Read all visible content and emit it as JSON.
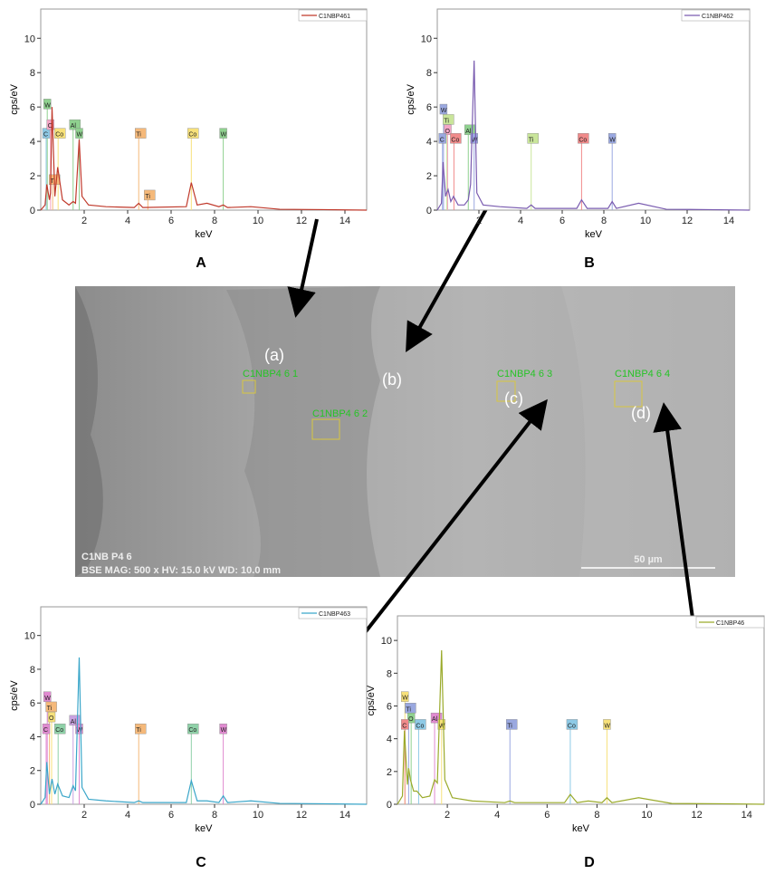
{
  "chart_data": [
    {
      "type": "line",
      "panel_label": "A",
      "x_label": "keV",
      "y_label": "cps/eV",
      "x": [
        0,
        0.2,
        0.28,
        0.4,
        0.45,
        0.52,
        0.65,
        0.78,
        1.0,
        1.3,
        1.49,
        1.6,
        1.77,
        1.9,
        2.2,
        3,
        4.3,
        4.51,
        4.7,
        6.7,
        6.93,
        7.2,
        7.65,
        8.2,
        8.4,
        8.6,
        9.67,
        11,
        13,
        15
      ],
      "series": [
        {
          "name": "C1NBP461",
          "color": "#c0392b",
          "values": [
            0,
            0.3,
            1.5,
            0.6,
            1.0,
            6.0,
            0.8,
            2.5,
            0.6,
            0.3,
            0.5,
            0.4,
            4.1,
            0.8,
            0.3,
            0.2,
            0.15,
            0.4,
            0.15,
            0.2,
            1.6,
            0.3,
            0.4,
            0.2,
            0.3,
            0.15,
            0.2,
            0.05,
            0.03,
            0
          ]
        }
      ],
      "xlim": [
        0,
        15
      ],
      "ylim": [
        0,
        11.7
      ],
      "xticks": [
        2,
        4,
        6,
        8,
        10,
        12,
        14
      ],
      "yticks": [
        0,
        2,
        4,
        6,
        8,
        10
      ],
      "annotations": [
        {
          "text": "W",
          "x": 0.3,
          "y": 6.2,
          "color": "#8fd18f"
        },
        {
          "text": "C",
          "x": 0.25,
          "y": 4.5,
          "color": "#8ecae6"
        },
        {
          "text": "O",
          "x": 0.45,
          "y": 5.0,
          "color": "#f4a6c6"
        },
        {
          "text": "Co",
          "x": 0.8,
          "y": 4.5,
          "color": "#f7e17a"
        },
        {
          "text": "Ti",
          "x": 0.55,
          "y": 1.8,
          "color": "#f5b97a"
        },
        {
          "text": "Al",
          "x": 1.49,
          "y": 5.0,
          "color": "#8fd18f"
        },
        {
          "text": "W",
          "x": 1.77,
          "y": 4.5,
          "color": "#8fd18f"
        },
        {
          "text": "Ti",
          "x": 4.51,
          "y": 4.5,
          "color": "#f5b97a"
        },
        {
          "text": "Ti",
          "x": 4.93,
          "y": 0.9,
          "color": "#f5b97a"
        },
        {
          "text": "Co",
          "x": 6.93,
          "y": 4.5,
          "color": "#f7e17a"
        },
        {
          "text": "W",
          "x": 8.4,
          "y": 4.5,
          "color": "#8fd18f"
        }
      ]
    },
    {
      "type": "line",
      "panel_label": "B",
      "x_label": "keV",
      "y_label": "cps/eV",
      "x": [
        0,
        0.2,
        0.28,
        0.4,
        0.45,
        0.52,
        0.65,
        0.78,
        1.0,
        1.3,
        1.49,
        1.6,
        1.77,
        1.9,
        2.2,
        3,
        4.3,
        4.51,
        4.7,
        6.7,
        6.93,
        7.2,
        7.65,
        8.2,
        8.4,
        8.6,
        9.67,
        11,
        13,
        15
      ],
      "series": [
        {
          "name": "C1NBP462",
          "color": "#7a5cb0",
          "values": [
            0,
            0.4,
            2.8,
            0.8,
            1.0,
            1.2,
            0.5,
            0.8,
            0.3,
            0.3,
            0.6,
            1.5,
            8.7,
            1.0,
            0.3,
            0.2,
            0.1,
            0.3,
            0.1,
            0.1,
            0.6,
            0.1,
            0.1,
            0.1,
            0.5,
            0.1,
            0.4,
            0.05,
            0.03,
            0
          ]
        }
      ],
      "xlim": [
        0,
        15
      ],
      "ylim": [
        0,
        11.7
      ],
      "xticks": [
        2,
        4,
        6,
        8,
        10,
        12,
        14
      ],
      "yticks": [
        0,
        2,
        4,
        6,
        8,
        10
      ],
      "annotations": [
        {
          "text": "W",
          "x": 0.3,
          "y": 5.9,
          "color": "#9aa8e0"
        },
        {
          "text": "Ti",
          "x": 0.45,
          "y": 5.3,
          "color": "#c9e59a"
        },
        {
          "text": "O",
          "x": 0.5,
          "y": 4.7,
          "color": "#f4a6c6"
        },
        {
          "text": "C",
          "x": 0.25,
          "y": 4.2,
          "color": "#9aa8e0"
        },
        {
          "text": "Co",
          "x": 0.8,
          "y": 4.2,
          "color": "#f08a8a"
        },
        {
          "text": "Al",
          "x": 1.49,
          "y": 4.7,
          "color": "#8fd18f"
        },
        {
          "text": "W",
          "x": 1.77,
          "y": 4.2,
          "color": "#9aa8e0"
        },
        {
          "text": "Ti",
          "x": 4.51,
          "y": 4.2,
          "color": "#c9e59a"
        },
        {
          "text": "Co",
          "x": 6.93,
          "y": 4.2,
          "color": "#f08a8a"
        },
        {
          "text": "W",
          "x": 8.4,
          "y": 4.2,
          "color": "#9aa8e0"
        }
      ]
    },
    {
      "type": "line",
      "panel_label": "C",
      "x_label": "keV",
      "y_label": "cps/eV",
      "x": [
        0,
        0.2,
        0.28,
        0.4,
        0.45,
        0.52,
        0.65,
        0.78,
        1.0,
        1.3,
        1.49,
        1.6,
        1.77,
        1.9,
        2.2,
        3,
        4.3,
        4.51,
        4.7,
        6.7,
        6.93,
        7.2,
        7.65,
        8.2,
        8.4,
        8.6,
        9.67,
        11,
        13,
        15
      ],
      "series": [
        {
          "name": "C1NBP463",
          "color": "#3aa6c9",
          "values": [
            0,
            0.4,
            2.5,
            0.6,
            1.0,
            1.5,
            0.6,
            1.2,
            0.5,
            0.4,
            1.1,
            0.8,
            8.7,
            1.0,
            0.3,
            0.2,
            0.1,
            0.2,
            0.1,
            0.1,
            1.4,
            0.2,
            0.2,
            0.1,
            0.5,
            0.1,
            0.2,
            0.05,
            0.03,
            0
          ]
        }
      ],
      "xlim": [
        0,
        15
      ],
      "ylim": [
        0,
        11.7
      ],
      "xticks": [
        2,
        4,
        6,
        8,
        10,
        12,
        14
      ],
      "yticks": [
        0,
        2,
        4,
        6,
        8,
        10
      ],
      "annotations": [
        {
          "text": "W",
          "x": 0.3,
          "y": 6.4,
          "color": "#e08ad0"
        },
        {
          "text": "Ti",
          "x": 0.4,
          "y": 5.8,
          "color": "#f5b97a"
        },
        {
          "text": "O",
          "x": 0.5,
          "y": 5.2,
          "color": "#f7e17a"
        },
        {
          "text": "C",
          "x": 0.25,
          "y": 4.5,
          "color": "#e08ad0"
        },
        {
          "text": "Co",
          "x": 0.8,
          "y": 4.5,
          "color": "#8fd1a8"
        },
        {
          "text": "Al",
          "x": 1.49,
          "y": 5.0,
          "color": "#c9a2e0"
        },
        {
          "text": "W",
          "x": 1.77,
          "y": 4.5,
          "color": "#e08ad0"
        },
        {
          "text": "Ti",
          "x": 4.51,
          "y": 4.5,
          "color": "#f5b97a"
        },
        {
          "text": "Co",
          "x": 6.93,
          "y": 4.5,
          "color": "#8fd1a8"
        },
        {
          "text": "W",
          "x": 8.4,
          "y": 4.5,
          "color": "#e08ad0"
        }
      ]
    },
    {
      "type": "line",
      "panel_label": "D",
      "x_label": "keV",
      "y_label": "cps/eV",
      "x": [
        0,
        0.2,
        0.28,
        0.4,
        0.45,
        0.52,
        0.65,
        0.78,
        1.0,
        1.3,
        1.49,
        1.6,
        1.77,
        1.9,
        2.2,
        3,
        4.3,
        4.51,
        4.7,
        6.7,
        6.93,
        7.2,
        7.65,
        8.2,
        8.4,
        8.6,
        9.67,
        11,
        13,
        14.7
      ],
      "series": [
        {
          "name": "C1NBP46",
          "color": "#9aaa2a",
          "values": [
            0,
            0.5,
            4.5,
            1.2,
            2.2,
            1.5,
            0.8,
            0.8,
            0.4,
            0.5,
            1.5,
            1.3,
            9.4,
            1.5,
            0.4,
            0.2,
            0.1,
            0.2,
            0.1,
            0.1,
            0.6,
            0.1,
            0.2,
            0.1,
            0.4,
            0.1,
            0.4,
            0.05,
            0.03,
            0
          ]
        }
      ],
      "xlim": [
        0,
        14.7
      ],
      "ylim": [
        0,
        11.5
      ],
      "xticks": [
        2,
        4,
        6,
        8,
        10,
        12,
        14
      ],
      "yticks": [
        0,
        2,
        4,
        6,
        8,
        10
      ],
      "annotations": [
        {
          "text": "W",
          "x": 0.3,
          "y": 6.6,
          "color": "#f7e17a"
        },
        {
          "text": "Ti",
          "x": 0.45,
          "y": 5.9,
          "color": "#9aa8e0"
        },
        {
          "text": "O",
          "x": 0.55,
          "y": 5.3,
          "color": "#8fd18f"
        },
        {
          "text": "C",
          "x": 0.3,
          "y": 4.9,
          "color": "#f08a8a"
        },
        {
          "text": "Co",
          "x": 0.85,
          "y": 4.9,
          "color": "#8ecae6"
        },
        {
          "text": "Al",
          "x": 1.49,
          "y": 5.3,
          "color": "#e08ad0"
        },
        {
          "text": "W",
          "x": 1.77,
          "y": 4.9,
          "color": "#f7e17a"
        },
        {
          "text": "Ti",
          "x": 4.51,
          "y": 4.9,
          "color": "#9aa8e0"
        },
        {
          "text": "Co",
          "x": 6.93,
          "y": 4.9,
          "color": "#8ecae6"
        },
        {
          "text": "W",
          "x": 8.4,
          "y": 4.9,
          "color": "#f7e17a"
        }
      ]
    }
  ],
  "sem_image": {
    "points": [
      "(a)",
      "(b)",
      "(c)",
      "(d)"
    ],
    "regions": [
      "C1NBP4 6 1",
      "C1NBP4 6 2",
      "C1NBP4 6 3",
      "C1NBP4 6 4"
    ],
    "caption_line1": "C1NB P4 6",
    "caption_line2": "BSE  MAG: 500 x  HV: 15.0 kV  WD: 10.0 mm",
    "scale_bar": "50 µm"
  }
}
